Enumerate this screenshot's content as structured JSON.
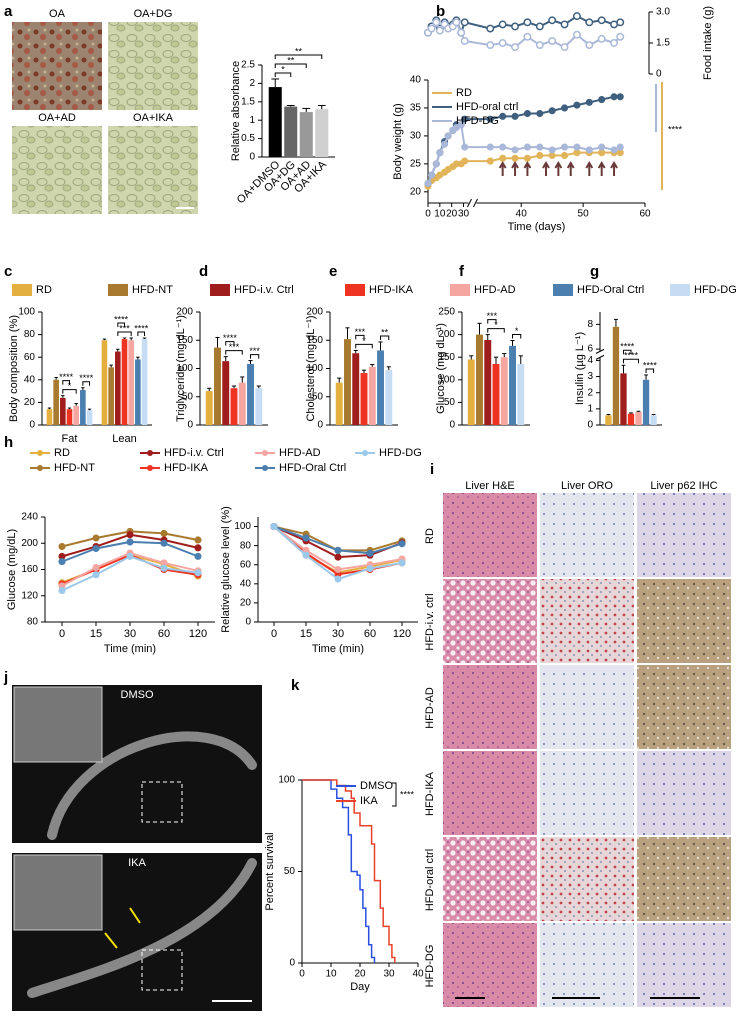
{
  "panels": [
    "a",
    "b",
    "c",
    "d",
    "e",
    "f",
    "g",
    "h",
    "i",
    "j",
    "k"
  ],
  "cell_images": {
    "labels": [
      "OA",
      "OA+DG",
      "OA+AD",
      "OA+IKA"
    ]
  },
  "liver": {
    "columns": [
      "Liver H&E",
      "Liver ORO",
      "Liver p62 IHC"
    ],
    "rows": [
      "RD",
      "HFD-i.v. ctrl",
      "HFD-AD",
      "HFD-IKA",
      "HFD-oral ctrl",
      "HFD-DG"
    ]
  },
  "worms": {
    "labels": [
      "DMSO",
      "IKA"
    ]
  },
  "chart_data": [
    {
      "type": "bar",
      "ylabel": "Relative absorbance",
      "categories": [
        "OA+DMSO",
        "OA+DG",
        "OA+AD",
        "OA+IKA"
      ],
      "values": [
        1.9,
        1.37,
        1.22,
        1.3
      ],
      "errors": [
        0.22,
        0.03,
        0.1,
        0.1
      ],
      "colors": [
        "#000000",
        "#666666",
        "#999999",
        "#d0d0d0"
      ],
      "ylim": [
        0,
        2.5
      ],
      "yticks": [
        0,
        0.5,
        1,
        1.5,
        2,
        2.5
      ],
      "annotations": [
        "*",
        "**",
        "**"
      ]
    },
    {
      "type": "line",
      "ylabel": "Food intake (g)",
      "y_axis": "right",
      "markers": "open",
      "x": [
        0,
        3,
        7,
        10,
        14,
        17,
        21,
        24,
        28,
        31,
        35,
        37,
        39,
        41,
        43,
        45,
        47,
        49,
        51,
        53,
        55,
        56
      ],
      "xlim": [
        0,
        60
      ],
      "x_break": 33,
      "ylim": [
        0,
        3
      ],
      "yticks": [
        0,
        1.5,
        {
          "value": 3,
          "label": "3.0"
        }
      ],
      "series": [
        {
          "color": "#3f5f7f",
          "values": [
            2.0,
            2.3,
            2.6,
            2.2,
            2.5,
            2.3,
            2.4,
            2.6,
            2.0,
            2.5,
            2.2,
            2.4,
            2.3,
            2.5,
            2.3,
            2.6,
            2.4,
            2.8,
            2.5,
            2.6,
            2.4,
            2.5
          ]
        },
        {
          "color": "#a9b8d8",
          "values": [
            2.0,
            2.2,
            2.5,
            2.1,
            2.4,
            2.2,
            2.3,
            2.5,
            2.0,
            1.6,
            1.4,
            1.5,
            1.3,
            1.8,
            1.4,
            1.6,
            1.3,
            1.9,
            1.4,
            1.7,
            1.5,
            1.8
          ]
        }
      ]
    },
    {
      "type": "line",
      "xlabel": "Time (days)",
      "ylabel": "Body weight (g)",
      "markers": "filled",
      "x": [
        0,
        3,
        7,
        10,
        14,
        17,
        21,
        24,
        28,
        31,
        35,
        37,
        39,
        41,
        43,
        45,
        47,
        49,
        51,
        53,
        55,
        56
      ],
      "xlim": [
        0,
        60
      ],
      "x_break": 33,
      "xticks": [
        0,
        10,
        20,
        30,
        40,
        50,
        60
      ],
      "ylim": [
        18,
        40
      ],
      "yticks": [
        20,
        25,
        30,
        35,
        40
      ],
      "annotations": [
        "****"
      ],
      "series": [
        {
          "name": "RD",
          "color": "#e2b45a",
          "values": [
            21,
            22,
            22.5,
            23,
            23.5,
            24,
            24.5,
            25,
            25,
            25.5,
            25.5,
            26,
            26,
            26,
            26.5,
            26.5,
            26.5,
            27,
            27,
            27,
            27,
            27
          ]
        },
        {
          "name": "HFD-oral ctrl",
          "color": "#3f5f7f",
          "values": [
            21.5,
            23,
            25,
            27,
            29,
            30,
            31,
            32,
            32,
            33,
            33,
            33.5,
            33.5,
            34,
            34,
            34.5,
            35,
            35.5,
            36,
            36.5,
            37,
            37
          ]
        },
        {
          "name": "HFD-DG",
          "color": "#a9b8d8",
          "values": [
            21.5,
            23,
            25,
            27,
            28.5,
            30,
            31,
            31.5,
            32,
            28,
            28,
            28,
            27.5,
            28,
            28,
            27.5,
            28,
            28,
            27.5,
            28,
            27.5,
            28
          ]
        }
      ]
    },
    {
      "type": "grouped_bar",
      "ylabel": "Body composition (%)",
      "categories": [
        "Fat",
        "Lean"
      ],
      "ylim": [
        0,
        100
      ],
      "yticks": [
        0,
        20,
        40,
        60,
        80,
        100
      ],
      "annotations": [
        "*",
        "****",
        "****",
        "***",
        "****",
        "****"
      ],
      "series": [
        {
          "name": "RD",
          "color": "#e3b040",
          "values": [
            14,
            75
          ],
          "errors": [
            1,
            1
          ]
        },
        {
          "name": "HFD-NT",
          "color": "#a87a30",
          "values": [
            40,
            51
          ],
          "errors": [
            2,
            2
          ]
        },
        {
          "name": "HFD-i.v. Ctrl",
          "color": "#a01d1d",
          "values": [
            24,
            65
          ],
          "errors": [
            2,
            2
          ]
        },
        {
          "name": "HFD-IKA",
          "color": "#ee3322",
          "values": [
            14,
            76
          ],
          "errors": [
            1,
            1
          ]
        },
        {
          "name": "HFD-AD",
          "color": "#f6a6a0",
          "values": [
            17,
            75
          ],
          "errors": [
            2,
            2
          ]
        },
        {
          "name": "HFD-Oral Ctrl",
          "color": "#4a7fb0",
          "values": [
            31,
            58
          ],
          "errors": [
            2,
            2
          ]
        },
        {
          "name": "HFD-DG",
          "color": "#c5dcf2",
          "values": [
            13,
            76
          ],
          "errors": [
            1,
            1
          ]
        }
      ]
    },
    {
      "type": "bar",
      "ylabel": "Triglyceride (mg dL⁻¹)",
      "values": [
        60,
        137,
        113,
        65,
        75,
        108,
        65
      ],
      "errors": [
        5,
        18,
        8,
        4,
        10,
        6,
        4
      ],
      "ylim": [
        0,
        200
      ],
      "yticks": [
        0,
        50,
        100,
        150,
        200
      ],
      "annotations": [
        "***",
        "****",
        "***"
      ]
    },
    {
      "type": "bar",
      "ylabel": "Cholesterol (mg dL⁻¹)",
      "values": [
        75,
        152,
        127,
        92,
        103,
        132,
        97
      ],
      "errors": [
        8,
        20,
        5,
        5,
        4,
        15,
        6
      ],
      "ylim": [
        0,
        200
      ],
      "yticks": [
        0,
        50,
        100,
        150,
        200
      ],
      "annotations": [
        "*",
        "***",
        "**"
      ]
    },
    {
      "type": "bar",
      "ylabel": "Glucose (mg dL⁻¹)",
      "values": [
        145,
        200,
        188,
        135,
        150,
        175,
        135
      ],
      "errors": [
        8,
        25,
        12,
        15,
        8,
        12,
        18
      ],
      "ylim": [
        0,
        250
      ],
      "yticks": [
        0,
        50,
        100,
        150,
        200,
        250
      ],
      "annotations": [
        "*",
        "***",
        "*"
      ]
    },
    {
      "type": "bar",
      "ylabel": "Insulin (µg L⁻¹)",
      "values": [
        0.6,
        7.8,
        3.2,
        0.7,
        0.8,
        2.8,
        0.6
      ],
      "errors": [
        0.05,
        0.6,
        0.5,
        0.05,
        0.05,
        0.3,
        0.05
      ],
      "ylim": [
        0,
        9
      ],
      "y_break": [
        4.2,
        5.8
      ],
      "yticks": [
        0,
        1,
        2,
        3,
        4,
        6,
        8
      ],
      "annotations": [
        "****",
        "****",
        "****"
      ]
    },
    {
      "type": "line",
      "xlabel": "Time (min)",
      "ylabel": "Glucose (mg/dL)",
      "markers": "filled",
      "legend": true,
      "categories": [
        "0",
        "15",
        "30",
        "60",
        "120"
      ],
      "ylim": [
        80,
        240
      ],
      "yticks": [
        80,
        120,
        160,
        200,
        240
      ],
      "series": [
        {
          "name": "RD",
          "color": "#e3b040",
          "values": [
            140,
            160,
            183,
            168,
            150
          ]
        },
        {
          "name": "HFD-NT",
          "color": "#a87a30",
          "values": [
            195,
            208,
            218,
            215,
            205
          ]
        },
        {
          "name": "HFD-i.v. Ctrl",
          "color": "#a01d1d",
          "values": [
            180,
            195,
            213,
            205,
            193
          ]
        },
        {
          "name": "HFD-IKA",
          "color": "#ee3322",
          "values": [
            138,
            160,
            182,
            160,
            152
          ]
        },
        {
          "name": "HFD-AD",
          "color": "#f6a6a0",
          "values": [
            135,
            163,
            185,
            170,
            158
          ]
        },
        {
          "name": "HFD-Oral Ctrl",
          "color": "#4a7fb0",
          "values": [
            172,
            192,
            202,
            200,
            180
          ]
        },
        {
          "name": "HFD-DG",
          "color": "#9cc8ea",
          "values": [
            128,
            152,
            180,
            162,
            155
          ]
        }
      ]
    },
    {
      "type": "line",
      "xlabel": "Time (min)",
      "ylabel": "Relative glucose level (%)",
      "markers": "filled",
      "categories": [
        "0",
        "15",
        "30",
        "60",
        "120"
      ],
      "ylim": [
        0,
        110
      ],
      "yticks": [
        0,
        20,
        40,
        60,
        80,
        100
      ],
      "series": [
        {
          "color": "#e3b040",
          "values": [
            100,
            70,
            52,
            58,
            65
          ]
        },
        {
          "color": "#a87a30",
          "values": [
            100,
            92,
            75,
            75,
            85
          ]
        },
        {
          "color": "#a01d1d",
          "values": [
            100,
            85,
            68,
            70,
            83
          ]
        },
        {
          "color": "#ee3322",
          "values": [
            100,
            72,
            50,
            55,
            62
          ]
        },
        {
          "color": "#f6a6a0",
          "values": [
            100,
            75,
            55,
            60,
            66
          ]
        },
        {
          "color": "#4a7fb0",
          "values": [
            100,
            88,
            75,
            72,
            82
          ]
        },
        {
          "color": "#9cc8ea",
          "values": [
            100,
            70,
            45,
            56,
            62
          ]
        }
      ]
    },
    {
      "type": "step",
      "xlabel": "Day",
      "ylabel": "Percent survival",
      "xlim": [
        0,
        40
      ],
      "xticks": [
        0,
        10,
        20,
        30,
        40
      ],
      "ylim": [
        0,
        100
      ],
      "yticks": [
        0,
        50,
        100
      ],
      "annotations": [
        "****"
      ],
      "series": [
        {
          "name": "DMSO",
          "color": "#2a50e0",
          "x": [
            0,
            10,
            12,
            14,
            16,
            17,
            19,
            20,
            21,
            22,
            23,
            24,
            25
          ],
          "values": [
            100,
            95,
            90,
            85,
            70,
            50,
            48,
            40,
            30,
            20,
            10,
            3,
            0
          ]
        },
        {
          "name": "IKA",
          "color": "#e8402a",
          "x": [
            0,
            12,
            15,
            17,
            18,
            20,
            22,
            24,
            25,
            27,
            28,
            30,
            31,
            32
          ],
          "values": [
            100,
            97,
            94,
            90,
            82,
            75,
            75,
            65,
            45,
            30,
            20,
            10,
            3,
            0
          ]
        }
      ]
    }
  ]
}
